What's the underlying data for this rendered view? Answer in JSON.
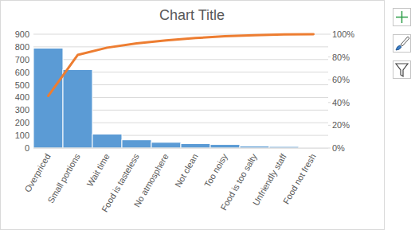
{
  "chart_data": {
    "type": "bar",
    "title": "Chart Title",
    "categories": [
      "Overpriced",
      "Small portions",
      "Wait time",
      "Food is tasteless",
      "No atmosphere",
      "Not clean",
      "Too noisy",
      "Food is too salty",
      "Unfriendly staff",
      "Food not fresh"
    ],
    "series": [
      {
        "type": "bar",
        "color": "#5b9bd5",
        "values": [
          790,
          620,
          110,
          65,
          45,
          35,
          28,
          15,
          12,
          3
        ]
      },
      {
        "type": "line",
        "axis": "y2",
        "color": "#ed7d31",
        "values": [
          45.8,
          81.8,
          88.2,
          92,
          94.6,
          96.6,
          98.3,
          99.1,
          99.8,
          100
        ]
      }
    ],
    "ylim": [
      0,
      900
    ],
    "yticks": [
      0,
      100,
      200,
      300,
      400,
      500,
      600,
      700,
      800,
      900
    ],
    "y2lim": [
      0,
      100
    ],
    "y2ticks": [
      {
        "value": 0,
        "label": "0%"
      },
      {
        "value": 20,
        "label": "20%"
      },
      {
        "value": 40,
        "label": "40%"
      },
      {
        "value": 60,
        "label": "60%"
      },
      {
        "value": 80,
        "label": "80%"
      },
      {
        "value": 100,
        "label": "100%"
      }
    ],
    "grid": true
  }
}
